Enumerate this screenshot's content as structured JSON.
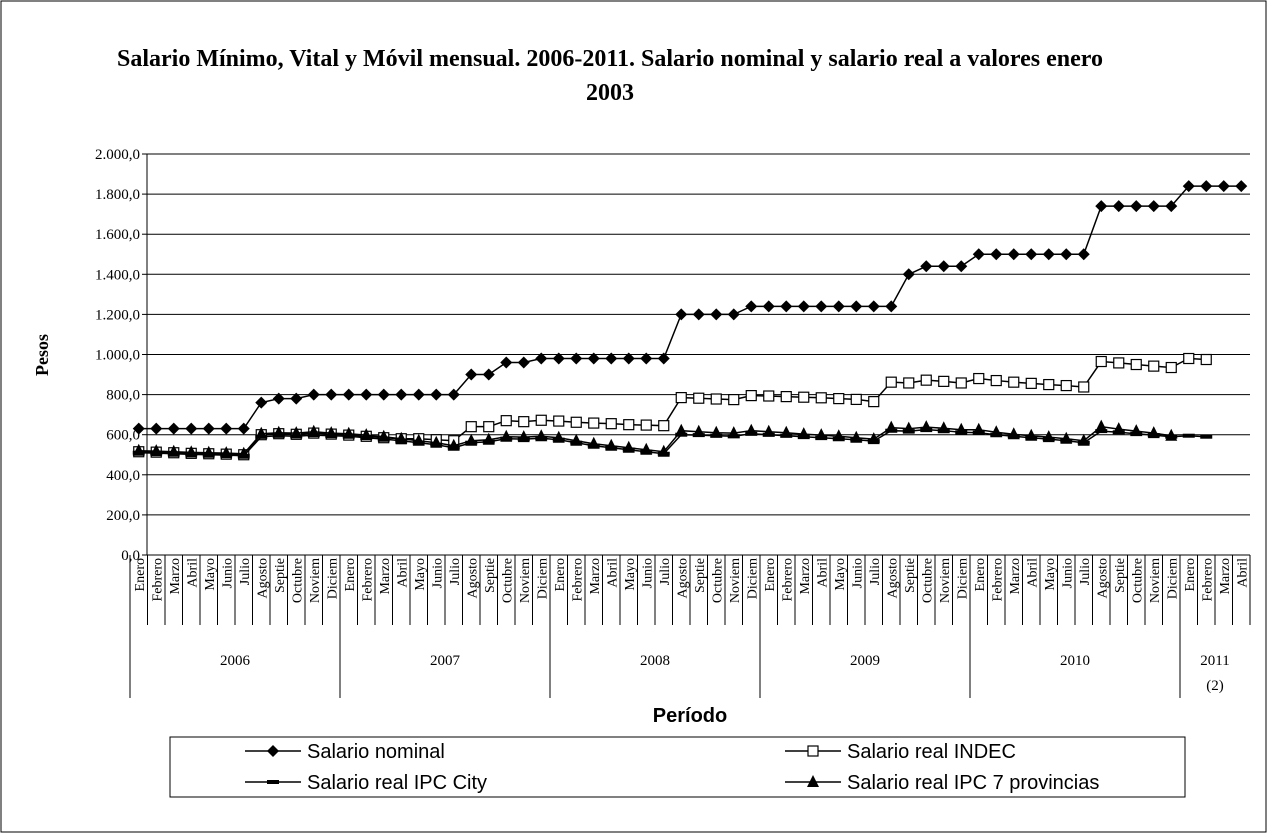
{
  "chart_data": {
    "type": "line",
    "title": "Salario Mínimo, Vital y Móvil mensual. 2006-2011. Salario nominal y salario real a valores enero 2003",
    "y_label": "Pesos",
    "x_label": "Período",
    "categories": [
      "Enero",
      "Febrero",
      "Marzo",
      "Abril",
      "Mayo",
      "Junio",
      "Julio",
      "Agosto",
      "Septie",
      "Octubre",
      "Noviem",
      "Diciem",
      "Enero",
      "Febrero",
      "Marzo",
      "Abril",
      "Mayo",
      "Junio",
      "Julio",
      "Agosto",
      "Septie",
      "Octubre",
      "Noviem",
      "Diciem",
      "Enero",
      "Febrero",
      "Marzo",
      "Abril",
      "Mayo",
      "Junio",
      "Julio",
      "Agosto",
      "Septie",
      "Octubre",
      "Noviem",
      "Diciem",
      "Enero",
      "Febrero",
      "Marzo",
      "Abril",
      "Mayo",
      "Junio",
      "Julio",
      "Agosto",
      "Septie",
      "Octubre",
      "Noviem",
      "Diciem",
      "Enero",
      "Febrero",
      "Marzo",
      "Abril",
      "Mayo",
      "Junio",
      "Julio",
      "Agosto",
      "Septie",
      "Octubre",
      "Noviem",
      "Diciem",
      "Enero",
      "Febrero",
      "Marzo",
      "Abril"
    ],
    "x_groups": [
      "2006",
      "2007",
      "2008",
      "2009",
      "2010",
      "2011"
    ],
    "x_group_note": "(2)",
    "ylim": [
      0,
      2000
    ],
    "yticks": [
      {
        "value": 0,
        "label": "0,0"
      },
      {
        "value": 200,
        "label": "200,0"
      },
      {
        "value": 400,
        "label": "400,0"
      },
      {
        "value": 600,
        "label": "600,0"
      },
      {
        "value": 800,
        "label": "800,0"
      },
      {
        "value": 1000,
        "label": "1.000,0"
      },
      {
        "value": 1200,
        "label": "1.200,0"
      },
      {
        "value": 1400,
        "label": "1.400,0"
      },
      {
        "value": 1600,
        "label": "1.600,0"
      },
      {
        "value": 1800,
        "label": "1.800,0"
      },
      {
        "value": 2000,
        "label": "2.000,0"
      }
    ],
    "grid": true,
    "series": [
      {
        "name": "Salario nominal",
        "color": "#000000",
        "marker": "diamond",
        "values": [
          630,
          630,
          630,
          630,
          630,
          630,
          630,
          760,
          780,
          780,
          800,
          800,
          800,
          800,
          800,
          800,
          800,
          800,
          800,
          900,
          900,
          960,
          960,
          980,
          980,
          980,
          980,
          980,
          980,
          980,
          980,
          1200,
          1200,
          1200,
          1200,
          1240,
          1240,
          1240,
          1240,
          1240,
          1240,
          1240,
          1240,
          1240,
          1400,
          1440,
          1440,
          1440,
          1500,
          1500,
          1500,
          1500,
          1500,
          1500,
          1500,
          1740,
          1740,
          1740,
          1740,
          1740,
          1840,
          1840,
          1840,
          1840
        ]
      },
      {
        "name": "Salario real INDEC",
        "color": "#000000",
        "marker": "square",
        "values": [
          515,
          513,
          510,
          507,
          505,
          503,
          500,
          600,
          605,
          602,
          608,
          603,
          598,
          592,
          585,
          580,
          580,
          575,
          570,
          640,
          640,
          670,
          665,
          672,
          668,
          662,
          658,
          655,
          650,
          648,
          645,
          785,
          782,
          778,
          775,
          795,
          793,
          790,
          787,
          784,
          780,
          776,
          765,
          862,
          858,
          872,
          866,
          858,
          880,
          870,
          862,
          856,
          850,
          845,
          838,
          965,
          958,
          950,
          942,
          935,
          980,
          975,
          null,
          null
        ]
      },
      {
        "name": "Salario real IPC City",
        "color": "#000000",
        "marker": "dash",
        "values": [
          510,
          508,
          505,
          502,
          500,
          498,
          495,
          590,
          595,
          592,
          598,
          595,
          592,
          585,
          578,
          570,
          560,
          550,
          535,
          560,
          565,
          580,
          578,
          582,
          575,
          560,
          545,
          535,
          525,
          515,
          505,
          600,
          598,
          595,
          592,
          605,
          600,
          595,
          590,
          585,
          580,
          575,
          568,
          620,
          618,
          625,
          620,
          612,
          610,
          600,
          592,
          585,
          578,
          570,
          560,
          618,
          612,
          605,
          598,
          590,
          595,
          590,
          null,
          null
        ]
      },
      {
        "name": "Salario real IPC 7 provincias",
        "color": "#000000",
        "marker": "triangle",
        "values": [
          520,
          518,
          515,
          512,
          510,
          508,
          505,
          605,
          610,
          608,
          615,
          608,
          605,
          598,
          590,
          580,
          570,
          560,
          545,
          570,
          575,
          590,
          588,
          592,
          585,
          570,
          555,
          545,
          535,
          525,
          515,
          620,
          615,
          610,
          608,
          620,
          615,
          610,
          603,
          598,
          592,
          585,
          578,
          635,
          630,
          638,
          632,
          625,
          625,
          612,
          602,
          595,
          588,
          580,
          570,
          640,
          628,
          618,
          608,
          595,
          null,
          null,
          null,
          null
        ]
      }
    ]
  }
}
